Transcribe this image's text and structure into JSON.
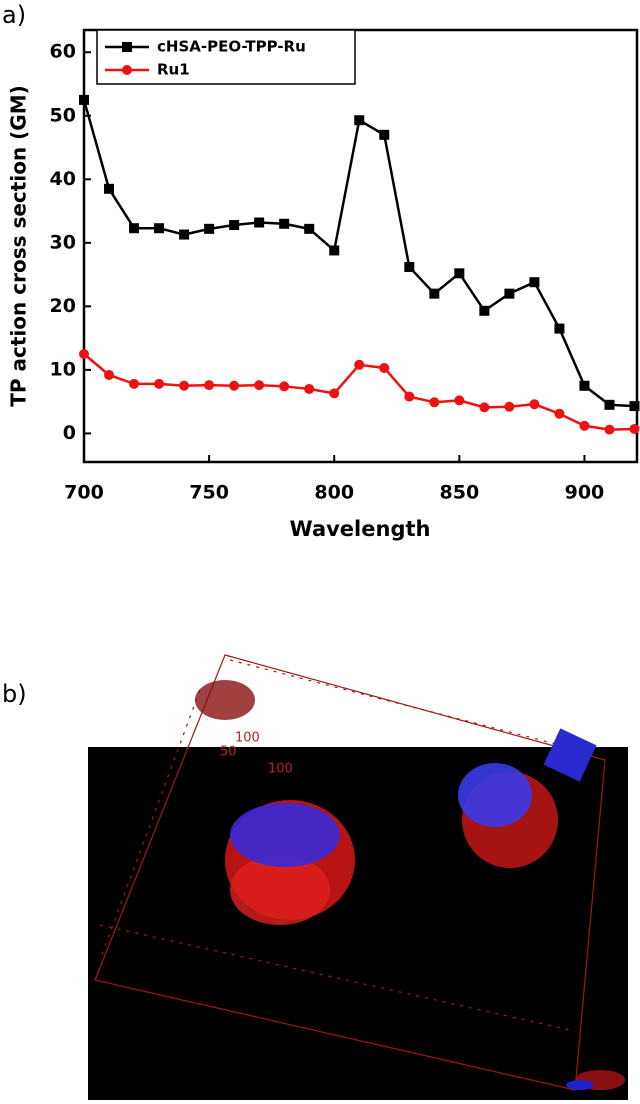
{
  "panel_labels": [
    "a)",
    "b)"
  ],
  "chart_data": {
    "type": "line",
    "x_label": "Wavelength",
    "y_label": "TP action cross section (GM)",
    "x": [
      700,
      710,
      720,
      730,
      740,
      750,
      760,
      770,
      780,
      790,
      800,
      810,
      820,
      830,
      840,
      850,
      860,
      870,
      880,
      890,
      900,
      910,
      920
    ],
    "series": [
      {
        "name": "cHSA-PEO-TPP-Ru",
        "color": "#000000",
        "marker": "square",
        "values": [
          52.5,
          38.5,
          32.3,
          32.3,
          31.3,
          32.2,
          32.8,
          33.2,
          33,
          32.2,
          28.8,
          49.3,
          47,
          26.2,
          22,
          25.2,
          19.3,
          22,
          23.8,
          16.5,
          7.5,
          4.5,
          4.3
        ]
      },
      {
        "name": "Ru1",
        "color": "#ee1111",
        "marker": "circle",
        "values": [
          12.5,
          9.2,
          7.8,
          7.8,
          7.5,
          7.6,
          7.5,
          7.6,
          7.4,
          7,
          6.3,
          10.8,
          10.3,
          5.8,
          4.9,
          5.2,
          4.1,
          4.2,
          4.6,
          3.1,
          1.2,
          0.6,
          0.7
        ]
      }
    ],
    "xlim": [
      700,
      921
    ],
    "xticks": [
      700,
      750,
      800,
      850,
      900
    ],
    "ylim": [
      -4.5,
      63.5
    ],
    "yticks": [
      0,
      10,
      20,
      30,
      40,
      50,
      60
    ],
    "legend": "upper left",
    "grid": false
  },
  "image": {
    "scale_labels": [
      "100",
      "50",
      "100"
    ]
  }
}
